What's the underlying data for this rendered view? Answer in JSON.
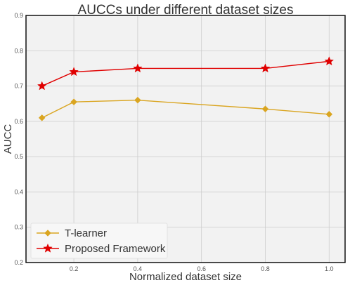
{
  "chart_data": {
    "type": "line",
    "title": "AUCCs under different dataset sizes",
    "xlabel": "Normalized dataset size",
    "ylabel": "AUCC",
    "xlim": [
      0.05,
      1.05
    ],
    "ylim": [
      0.2,
      0.9
    ],
    "x_ticks": [
      "0.2",
      "0.4",
      "0.6",
      "0.8",
      "1.0"
    ],
    "y_ticks": [
      "0.2",
      "0.3",
      "0.4",
      "0.5",
      "0.6",
      "0.7",
      "0.8",
      "0.9"
    ],
    "grid": true,
    "legend_position": "bottom-left",
    "series": [
      {
        "name": "T-learner",
        "color": "#DAA520",
        "marker": "diamond",
        "x": [
          0.1,
          0.2,
          0.4,
          0.8,
          1.0
        ],
        "y": [
          0.61,
          0.655,
          0.66,
          0.635,
          0.62
        ]
      },
      {
        "name": "Proposed Framework",
        "color": "#E00000",
        "marker": "star",
        "x": [
          0.1,
          0.2,
          0.4,
          0.8,
          1.0
        ],
        "y": [
          0.7,
          0.74,
          0.75,
          0.75,
          0.77
        ]
      }
    ]
  }
}
